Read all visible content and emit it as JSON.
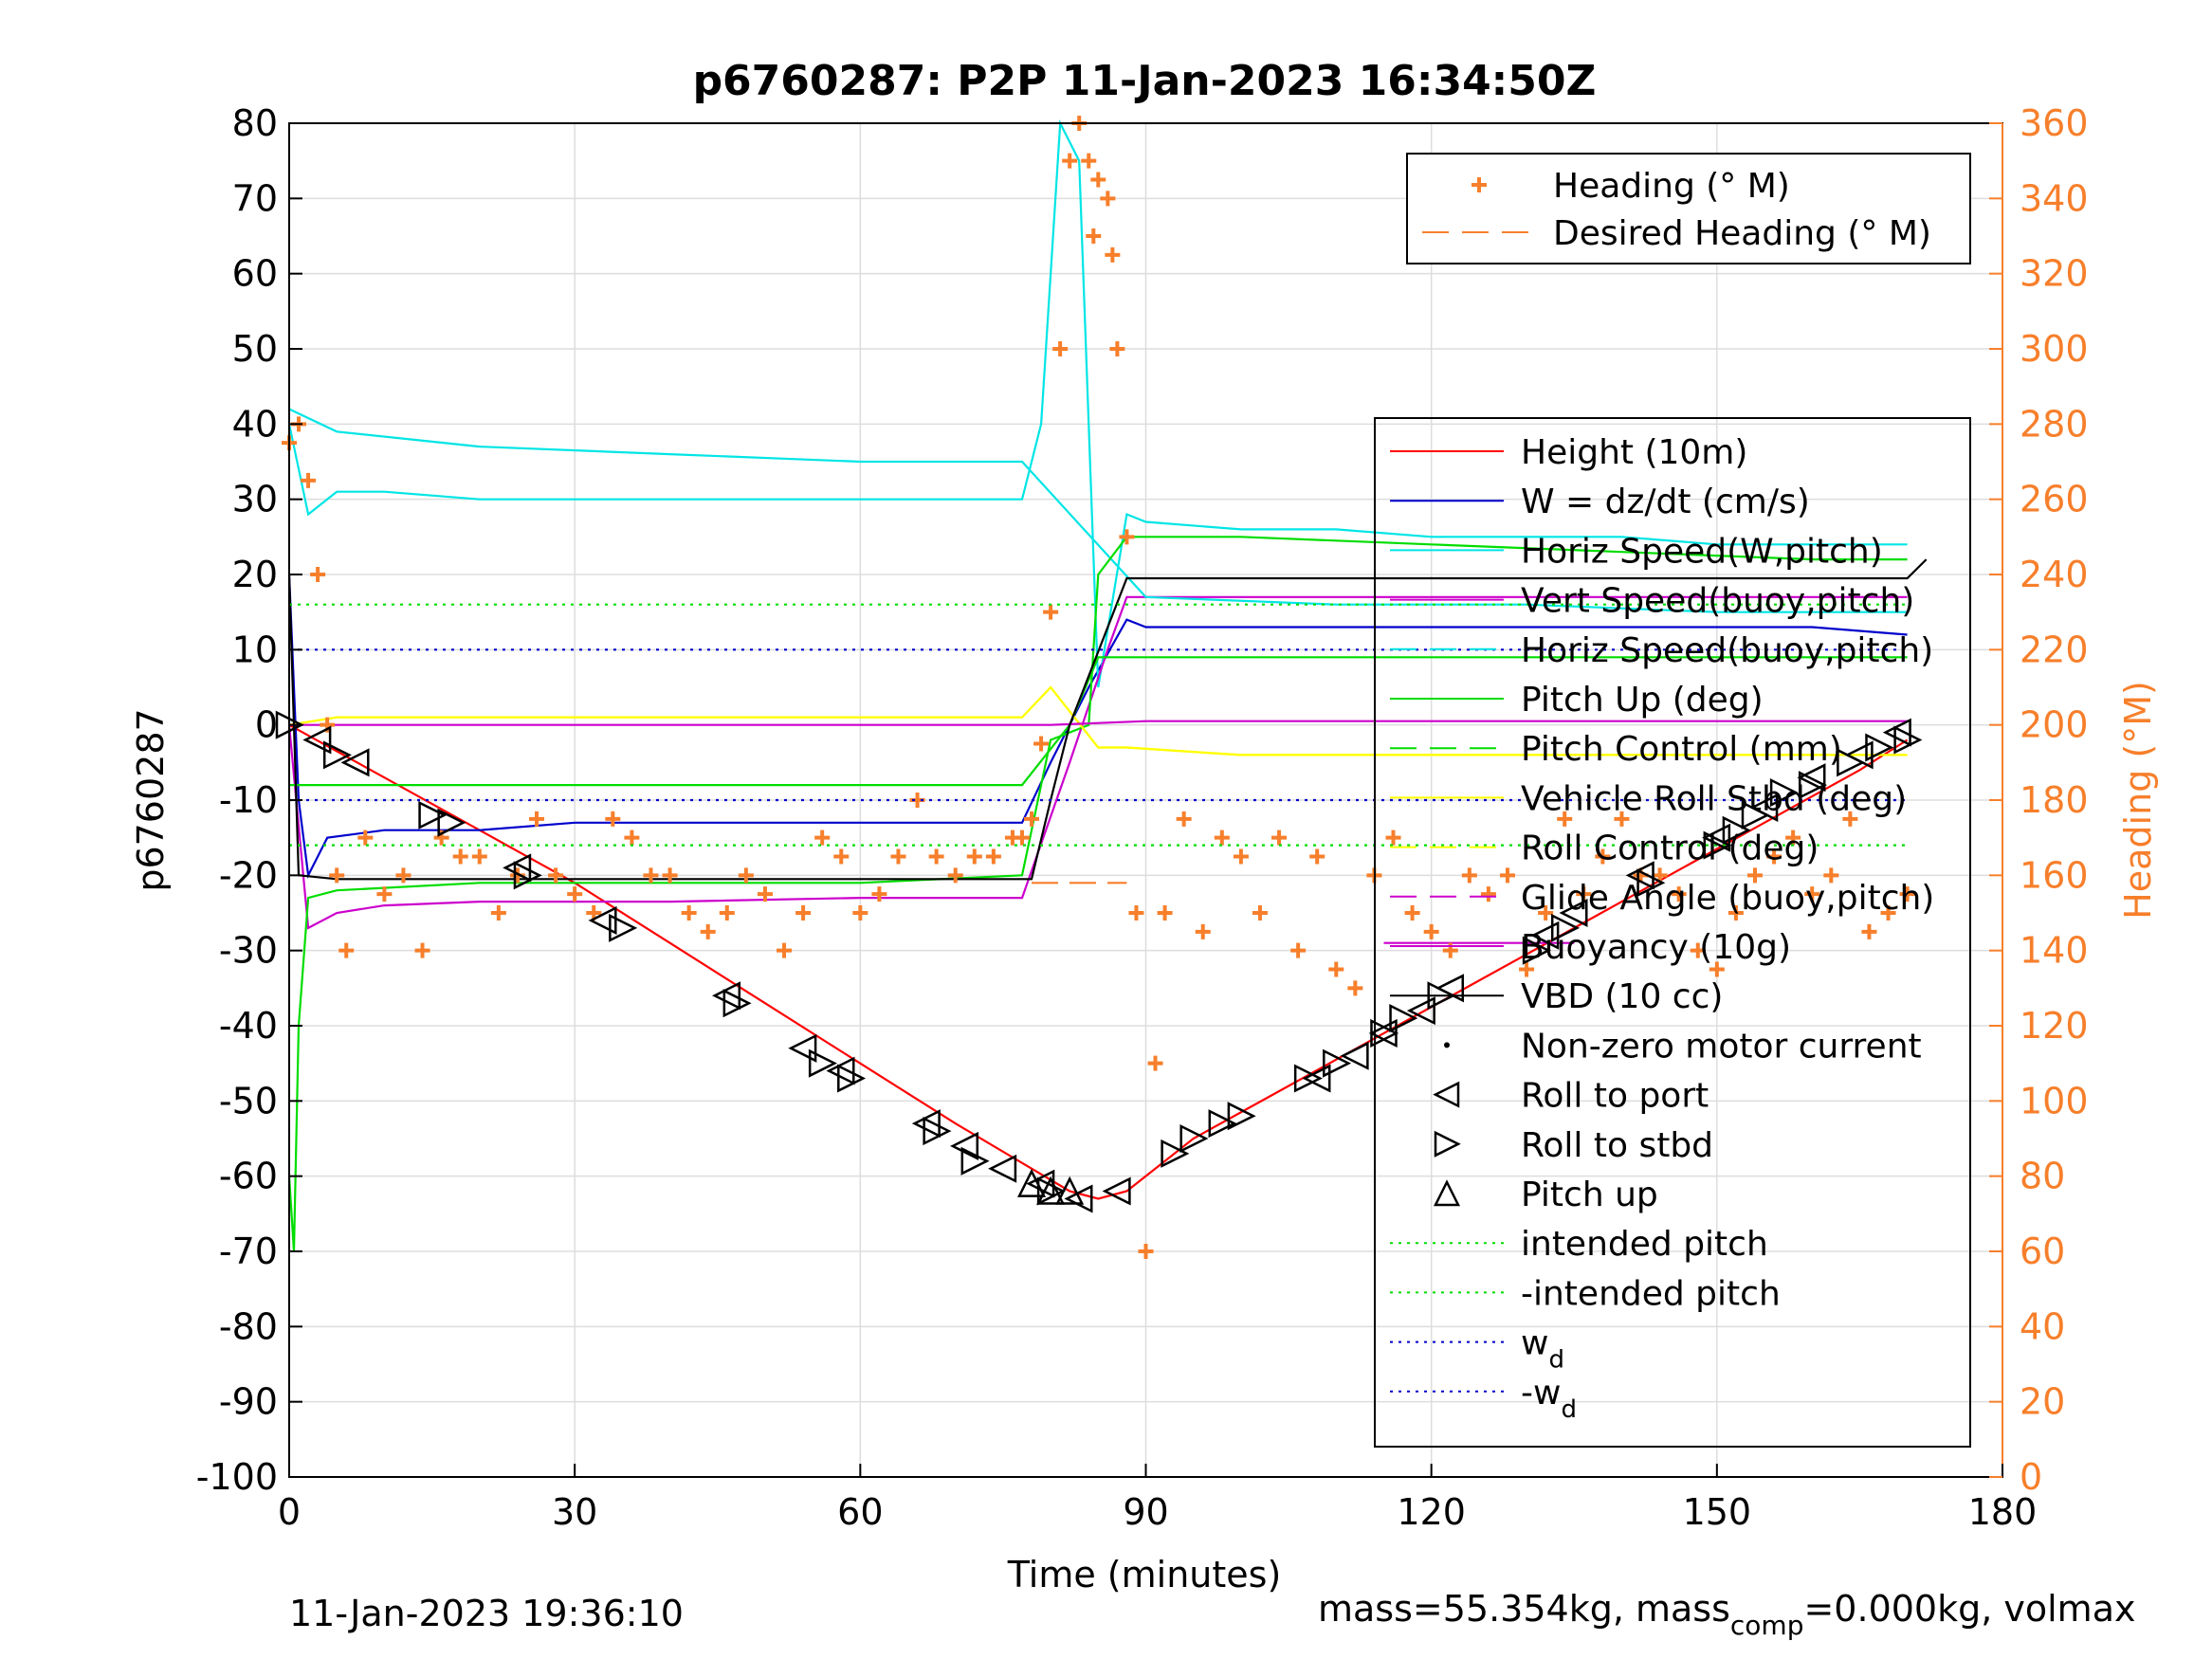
{
  "chart_data": {
    "type": "line",
    "title": "p6760287: P2P 11-Jan-2023 16:34:50Z",
    "xlabel": "Time (minutes)",
    "ylabel_left": "p6760287",
    "ylabel_right": "Heading (°M)",
    "xlim": [
      0,
      180
    ],
    "ylim_left": [
      -100,
      80
    ],
    "ylim_right": [
      0,
      360
    ],
    "xticks": [
      "0",
      "30",
      "60",
      "90",
      "120",
      "150",
      "180"
    ],
    "yticks_left": [
      "80",
      "70",
      "60",
      "50",
      "40",
      "30",
      "20",
      "10",
      "0",
      "-10",
      "-20",
      "-30",
      "-40",
      "-50",
      "-60",
      "-70",
      "-80",
      "-90",
      "-100"
    ],
    "yticks_right": [
      "360",
      "340",
      "320",
      "300",
      "280",
      "260",
      "240",
      "220",
      "200",
      "180",
      "160",
      "140",
      "120",
      "100",
      "80",
      "60",
      "40",
      "20",
      "0"
    ],
    "grid": true,
    "footer_left": "11-Jan-2023 19:36:10",
    "footer_right": "mass=55.354kg, mass",
    "footer_right_sub": "comp",
    "footer_right_tail": "=0.000kg, volmax",
    "legend_top": [
      {
        "label": "Heading (° M)",
        "color": "#f77f2b",
        "style": "plus"
      },
      {
        "label": "Desired Heading (° M)",
        "color": "#f77f2b",
        "style": "dashed"
      }
    ],
    "legend_main": [
      {
        "label": "Height (10m)",
        "color": "#ff0000",
        "style": "solid"
      },
      {
        "label": "W = dz/dt (cm/s)",
        "color": "#0000cc",
        "style": "solid"
      },
      {
        "label": "Horiz Speed(W,pitch)",
        "color": "#00e5e5",
        "style": "solid"
      },
      {
        "label": "Vert Speed(buoy,pitch)",
        "color": "#cc00cc",
        "style": "solid"
      },
      {
        "label": "Horiz Speed(buoy,pitch)",
        "color": "#00e5e5",
        "style": "dashed"
      },
      {
        "label": "Pitch Up (deg)",
        "color": "#00dd00",
        "style": "solid"
      },
      {
        "label": "Pitch Control (mm)",
        "color": "#00dd00",
        "style": "dashed"
      },
      {
        "label": "Vehicle Roll Stbd (deg)",
        "color": "#ffff00",
        "style": "solid"
      },
      {
        "label": "Roll Control (deg)",
        "color": "#ffff00",
        "style": "dashed"
      },
      {
        "label": "Glide Angle (buoy,pitch)",
        "color": "#cc00cc",
        "style": "dashed"
      },
      {
        "label": "Buoyancy (10g)",
        "color": "#cc00cc",
        "style": "solid"
      },
      {
        "label": "VBD (10 cc)",
        "color": "#000000",
        "style": "solid"
      },
      {
        "label": "Non-zero motor current",
        "color": "#000000",
        "style": "dot"
      },
      {
        "label": "Roll to port",
        "color": "#000000",
        "style": "tri-left"
      },
      {
        "label": "Roll to stbd",
        "color": "#000000",
        "style": "tri-right"
      },
      {
        "label": "Pitch up",
        "color": "#000000",
        "style": "tri-up"
      },
      {
        "label": "intended pitch",
        "color": "#00dd00",
        "style": "dotted"
      },
      {
        "label": "-intended pitch",
        "color": "#00dd00",
        "style": "dotted"
      },
      {
        "label": "w",
        "sub": "d",
        "color": "#0000cc",
        "style": "dotted"
      },
      {
        "label": "-w",
        "sub": "d",
        "color": "#0000cc",
        "style": "dotted"
      }
    ],
    "series": [
      {
        "name": "Height (10m)",
        "color": "#ff0000",
        "axis": "left",
        "x": [
          0,
          10,
          20,
          30,
          40,
          50,
          60,
          70,
          78,
          82,
          85,
          88,
          95,
          105,
          115,
          125,
          135,
          145,
          155,
          165,
          170
        ],
        "y": [
          0,
          -7,
          -14,
          -21,
          -29,
          -37,
          -45,
          -53,
          -59,
          -62,
          -63,
          -62,
          -55,
          -48,
          -41,
          -34,
          -27,
          -20,
          -13,
          -6,
          -2
        ]
      },
      {
        "name": "W = dz/dt (cm/s)",
        "color": "#0000cc",
        "axis": "left",
        "x": [
          0,
          1,
          2,
          4,
          10,
          20,
          30,
          40,
          50,
          60,
          70,
          77,
          80,
          84,
          88,
          90,
          100,
          110,
          120,
          130,
          140,
          150,
          160,
          170
        ],
        "y": [
          20,
          -10,
          -20,
          -15,
          -14,
          -14,
          -13,
          -13,
          -13,
          -13,
          -13,
          -13,
          -5,
          5,
          14,
          13,
          13,
          13,
          13,
          13,
          13,
          13,
          13,
          12
        ]
      },
      {
        "name": "Horiz Speed(W,pitch)",
        "color": "#00e5e5",
        "axis": "left",
        "x": [
          0,
          2,
          5,
          10,
          20,
          30,
          40,
          50,
          60,
          70,
          77,
          79,
          81,
          83,
          85,
          88,
          90,
          100,
          110,
          120,
          130,
          140,
          150,
          160,
          170
        ],
        "y": [
          40,
          28,
          31,
          31,
          30,
          30,
          30,
          30,
          30,
          30,
          30,
          40,
          80,
          75,
          5,
          28,
          27,
          26,
          26,
          25,
          25,
          25,
          24,
          24,
          24
        ]
      },
      {
        "name": "Vert Speed(buoy,pitch)",
        "color": "#cc00cc",
        "axis": "left",
        "x": [
          0,
          2,
          5,
          10,
          20,
          40,
          60,
          77,
          82,
          86,
          88,
          100,
          120,
          140,
          160,
          170
        ],
        "y": [
          0,
          -27,
          -25,
          -24,
          -23.5,
          -23.5,
          -23,
          -23,
          -5,
          10,
          17,
          17,
          17,
          17,
          17,
          17
        ]
      },
      {
        "name": "Horiz Speed(buoy,pitch)",
        "color": "#00e5e5",
        "axis": "left",
        "x": [
          0,
          5,
          20,
          40,
          60,
          77,
          90,
          110,
          130,
          150,
          170
        ],
        "y": [
          42,
          39,
          37,
          36,
          35,
          35,
          17,
          16,
          16,
          15,
          15
        ]
      },
      {
        "name": "Pitch Up (deg)",
        "color": "#00dd00",
        "axis": "left",
        "x": [
          0,
          0.5,
          1,
          2,
          5,
          20,
          40,
          60,
          77,
          80,
          84,
          85,
          88,
          90,
          100,
          120,
          140,
          160,
          170
        ],
        "y": [
          -60,
          -70,
          -40,
          -23,
          -22,
          -21,
          -21,
          -21,
          -20,
          -2,
          0,
          20,
          25,
          25,
          25,
          24,
          23,
          22,
          22
        ]
      },
      {
        "name": "Pitch Control (mm)",
        "color": "#00dd00",
        "axis": "left",
        "x": [
          0,
          20,
          40,
          60,
          77,
          82,
          85,
          100,
          120,
          140,
          160,
          170
        ],
        "y": [
          -8,
          -8,
          -8,
          -8,
          -8,
          0,
          9,
          9,
          9,
          9,
          9,
          9
        ]
      },
      {
        "name": "Vehicle Roll Stbd (deg)",
        "color": "#ffff00",
        "axis": "left",
        "x": [
          0,
          5,
          20,
          40,
          60,
          77,
          80,
          85,
          88,
          100,
          120,
          140,
          160,
          170
        ],
        "y": [
          0,
          1,
          1,
          1,
          1,
          1,
          5,
          -3,
          -3,
          -4,
          -4,
          -4,
          -4,
          -4
        ]
      },
      {
        "name": "Roll Control (deg)",
        "color": "#ffff00",
        "axis": "left",
        "x": [
          0,
          5,
          20,
          40,
          60,
          77,
          80,
          85,
          88,
          100,
          120,
          140,
          160,
          170
        ],
        "y": [
          0,
          1,
          1,
          1,
          1,
          1,
          5,
          -3,
          -3,
          -4,
          -4,
          -4,
          -4,
          -4
        ]
      },
      {
        "name": "Glide Angle (buoy,pitch)",
        "color": "#cc00cc",
        "axis": "left",
        "x": [
          0,
          40,
          80,
          90,
          130,
          170
        ],
        "y": [
          0,
          0,
          0,
          0.5,
          0.5,
          0.5
        ]
      },
      {
        "name": "Buoyancy (10g)",
        "color": "#cc00cc",
        "axis": "left",
        "x": [
          115,
          130,
          135
        ],
        "y": [
          -29,
          -29,
          -29
        ]
      },
      {
        "name": "VBD (10 cc)",
        "color": "#000000",
        "axis": "left",
        "x": [
          0,
          1,
          5,
          78,
          80,
          82,
          88,
          170,
          172
        ],
        "y": [
          20,
          -20,
          -20.5,
          -20.5,
          -10,
          0,
          19.5,
          19.5,
          22
        ]
      },
      {
        "name": "Heading (° M)",
        "color": "#f77f2b",
        "axis": "right",
        "marker": "+",
        "x": [
          0,
          1,
          2,
          3,
          4,
          5,
          6,
          8,
          10,
          12,
          14,
          16,
          18,
          20,
          22,
          24,
          26,
          28,
          30,
          32,
          34,
          36,
          38,
          40,
          42,
          44,
          46,
          48,
          50,
          52,
          54,
          56,
          58,
          60,
          62,
          64,
          66,
          68,
          70,
          72,
          74,
          76,
          77,
          78,
          79,
          80,
          81,
          82,
          83,
          84,
          84.5,
          85,
          86,
          86.5,
          87,
          88,
          89,
          90,
          91,
          92,
          94,
          96,
          98,
          100,
          102,
          104,
          106,
          108,
          110,
          112,
          114,
          116,
          118,
          120,
          122,
          124,
          126,
          128,
          130,
          132,
          134,
          136,
          138,
          140,
          142,
          144,
          146,
          148,
          150,
          152,
          154,
          156,
          158,
          160,
          162,
          164,
          166,
          168,
          170
        ],
        "y": [
          275,
          280,
          265,
          240,
          200,
          160,
          140,
          170,
          155,
          160,
          140,
          170,
          165,
          165,
          150,
          160,
          175,
          160,
          155,
          150,
          175,
          170,
          160,
          160,
          150,
          145,
          150,
          160,
          155,
          140,
          150,
          170,
          165,
          150,
          155,
          165,
          180,
          165,
          160,
          165,
          165,
          170,
          170,
          175,
          195,
          230,
          300,
          350,
          365,
          350,
          330,
          345,
          340,
          325,
          300,
          250,
          150,
          60,
          110,
          150,
          175,
          145,
          170,
          165,
          150,
          170,
          140,
          165,
          135,
          130,
          160,
          170,
          150,
          145,
          140,
          160,
          155,
          160,
          135,
          150,
          175,
          155,
          165,
          175,
          160,
          160,
          155,
          140,
          135,
          150,
          160,
          165,
          170,
          155,
          160,
          175,
          145,
          150,
          155
        ]
      },
      {
        "name": "Desired Heading (° M)",
        "color": "#f77f2b",
        "axis": "right",
        "dashed": true,
        "x": [
          78,
          86,
          88
        ],
        "y": [
          158,
          158,
          158
        ]
      },
      {
        "name": "intended pitch",
        "color": "#00dd00",
        "axis": "left",
        "dotted": true,
        "x": [
          0,
          170
        ],
        "y": [
          16,
          16
        ]
      },
      {
        "name": "-intended pitch",
        "color": "#00dd00",
        "axis": "left",
        "dotted": true,
        "x": [
          0,
          170
        ],
        "y": [
          -16,
          -16
        ]
      },
      {
        "name": "w_d",
        "color": "#0000cc",
        "axis": "left",
        "dotted": true,
        "x": [
          0,
          170
        ],
        "y": [
          10,
          10
        ]
      },
      {
        "name": "-w_d",
        "color": "#0000cc",
        "axis": "left",
        "dotted": true,
        "x": [
          0,
          170
        ],
        "y": [
          -10,
          -10
        ]
      }
    ],
    "roll_to_port": {
      "x": [
        3,
        7,
        24,
        33,
        46,
        54,
        58,
        67,
        71,
        75,
        79,
        83,
        87,
        108,
        112,
        115,
        119,
        122,
        132,
        135,
        142,
        150,
        155,
        160,
        165,
        169
      ],
      "y": [
        -2,
        -5,
        -19,
        -26,
        -36,
        -43,
        -46,
        -53,
        -56,
        -59,
        -61,
        -63,
        -62,
        -47,
        -44,
        -41,
        -38,
        -35,
        -28,
        -25,
        -20,
        -15,
        -11,
        -7,
        -4,
        -1
      ]
    },
    "roll_to_stbd": {
      "x": [
        0,
        5,
        15,
        17,
        25,
        35,
        47,
        56,
        59,
        68,
        72,
        80,
        93,
        95,
        98,
        100,
        107,
        110,
        115,
        117,
        121,
        131,
        134,
        143,
        150,
        152,
        154,
        157,
        160,
        164,
        167,
        170
      ],
      "y": [
        0,
        -4,
        -12,
        -13,
        -20,
        -27,
        -37,
        -45,
        -47,
        -54,
        -58,
        -62,
        -57,
        -55,
        -53,
        -52,
        -47,
        -45,
        -41,
        -39,
        -36,
        -30,
        -27,
        -21,
        -16,
        -14,
        -12,
        -9,
        -8,
        -5,
        -3,
        -2
      ]
    },
    "pitch_up": {
      "x": [
        78,
        80,
        82
      ],
      "y": [
        -61,
        -62,
        -62
      ]
    }
  }
}
